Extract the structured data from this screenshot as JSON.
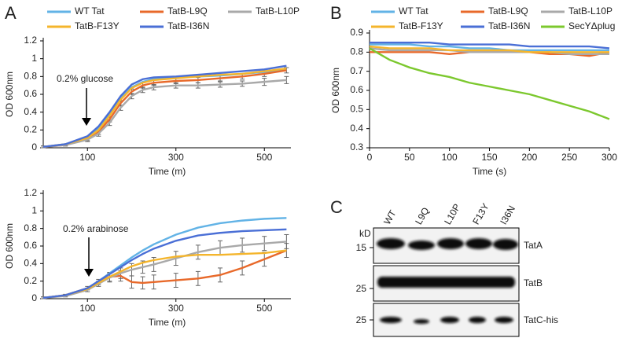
{
  "panel_labels": [
    "A",
    "B",
    "C"
  ],
  "chart_data": [
    {
      "type": "line",
      "ylabel": "OD 600nm",
      "xlabel": "Time (m)",
      "annotation": "0.2% glucose",
      "x": [
        0,
        50,
        100,
        125,
        150,
        175,
        200,
        225,
        250,
        300,
        350,
        400,
        450,
        500,
        550
      ],
      "xlim": [
        0,
        560
      ],
      "xticks": [
        100,
        300,
        500
      ],
      "ylim": [
        0,
        1.2
      ],
      "yticks": [
        0,
        0.2,
        0.4,
        0.6,
        0.8,
        1,
        1.2
      ],
      "series": [
        {
          "name": "WT Tat",
          "color": "#62b3e6",
          "values": [
            0.01,
            0.04,
            0.12,
            0.22,
            0.38,
            0.55,
            0.68,
            0.74,
            0.77,
            0.79,
            0.8,
            0.81,
            0.83,
            0.85,
            0.88
          ]
        },
        {
          "name": "TatB-L9Q",
          "color": "#e8692a",
          "values": [
            0.01,
            0.03,
            0.1,
            0.18,
            0.32,
            0.5,
            0.63,
            0.7,
            0.73,
            0.75,
            0.76,
            0.78,
            0.8,
            0.83,
            0.87
          ],
          "errors": [
            0.01,
            0.01,
            0.02,
            0.03,
            0.03,
            0.03,
            0.03,
            0.03,
            0.03,
            0.03,
            0.03,
            0.03,
            0.03,
            0.03,
            0.03
          ]
        },
        {
          "name": "TatB-L10P",
          "color": "#a9a9a9",
          "values": [
            0.01,
            0.03,
            0.09,
            0.16,
            0.28,
            0.45,
            0.58,
            0.65,
            0.68,
            0.7,
            0.7,
            0.71,
            0.72,
            0.74,
            0.76
          ],
          "errors": [
            0.01,
            0.01,
            0.02,
            0.03,
            0.03,
            0.03,
            0.03,
            0.03,
            0.03,
            0.03,
            0.03,
            0.03,
            0.03,
            0.04,
            0.04
          ]
        },
        {
          "name": "TatB-F13Y",
          "color": "#f4b52c",
          "values": [
            0.01,
            0.04,
            0.11,
            0.2,
            0.36,
            0.54,
            0.67,
            0.73,
            0.76,
            0.78,
            0.8,
            0.82,
            0.83,
            0.86,
            0.89
          ]
        },
        {
          "name": "TatB-I36N",
          "color": "#4a6fd6",
          "values": [
            0.01,
            0.04,
            0.13,
            0.24,
            0.4,
            0.58,
            0.71,
            0.77,
            0.79,
            0.8,
            0.82,
            0.84,
            0.86,
            0.88,
            0.92
          ]
        }
      ]
    },
    {
      "type": "line",
      "ylabel": "OD 600nm",
      "xlabel": "Time (m)",
      "annotation": "0.2% arabinose",
      "x": [
        0,
        50,
        100,
        125,
        150,
        175,
        200,
        225,
        250,
        300,
        350,
        400,
        450,
        500,
        550
      ],
      "xlim": [
        0,
        560
      ],
      "xticks": [
        100,
        300,
        500
      ],
      "ylim": [
        0,
        1.2
      ],
      "yticks": [
        0,
        0.2,
        0.4,
        0.6,
        0.8,
        1,
        1.2
      ],
      "series": [
        {
          "color": "#62b3e6",
          "values": [
            0.01,
            0.04,
            0.12,
            0.2,
            0.29,
            0.38,
            0.47,
            0.55,
            0.62,
            0.73,
            0.81,
            0.86,
            0.89,
            0.91,
            0.92
          ]
        },
        {
          "color": "#e8692a",
          "values": [
            0.01,
            0.04,
            0.12,
            0.19,
            0.25,
            0.26,
            0.19,
            0.18,
            0.19,
            0.21,
            0.23,
            0.27,
            0.35,
            0.45,
            0.55
          ],
          "errors": [
            0.01,
            0.01,
            0.02,
            0.03,
            0.05,
            0.06,
            0.07,
            0.07,
            0.08,
            0.08,
            0.08,
            0.08,
            0.08,
            0.08,
            0.08
          ]
        },
        {
          "color": "#a9a9a9",
          "values": [
            0.01,
            0.03,
            0.1,
            0.17,
            0.24,
            0.29,
            0.33,
            0.36,
            0.39,
            0.46,
            0.53,
            0.58,
            0.61,
            0.63,
            0.65
          ],
          "errors": [
            0.01,
            0.01,
            0.02,
            0.03,
            0.05,
            0.06,
            0.07,
            0.07,
            0.08,
            0.08,
            0.08,
            0.08,
            0.08,
            0.08,
            0.08
          ]
        },
        {
          "color": "#f4b52c",
          "values": [
            0.01,
            0.04,
            0.11,
            0.18,
            0.25,
            0.31,
            0.37,
            0.41,
            0.44,
            0.48,
            0.5,
            0.5,
            0.51,
            0.52,
            0.55
          ]
        },
        {
          "color": "#4a6fd6",
          "values": [
            0.01,
            0.04,
            0.12,
            0.2,
            0.28,
            0.36,
            0.44,
            0.51,
            0.57,
            0.66,
            0.72,
            0.75,
            0.77,
            0.78,
            0.79
          ]
        }
      ]
    },
    {
      "type": "line",
      "ylabel": "OD 600nm",
      "xlabel": "Time (s)",
      "x": [
        0,
        25,
        50,
        75,
        100,
        125,
        150,
        175,
        200,
        225,
        250,
        275,
        300
      ],
      "xlim": [
        0,
        300
      ],
      "xticks": [
        0,
        50,
        100,
        150,
        200,
        250,
        300
      ],
      "ylim": [
        0.3,
        0.9
      ],
      "yticks": [
        0.3,
        0.4,
        0.5,
        0.6,
        0.7,
        0.8,
        0.9
      ],
      "series": [
        {
          "name": "WT Tat",
          "color": "#62b3e6",
          "values": [
            0.84,
            0.84,
            0.84,
            0.83,
            0.83,
            0.82,
            0.82,
            0.81,
            0.81,
            0.81,
            0.81,
            0.81,
            0.81
          ]
        },
        {
          "name": "TatB-L9Q",
          "color": "#e8692a",
          "values": [
            0.8,
            0.8,
            0.8,
            0.8,
            0.79,
            0.8,
            0.8,
            0.8,
            0.8,
            0.79,
            0.79,
            0.78,
            0.8
          ]
        },
        {
          "name": "TatB-L10P",
          "color": "#a9a9a9",
          "values": [
            0.82,
            0.81,
            0.81,
            0.81,
            0.81,
            0.8,
            0.8,
            0.8,
            0.8,
            0.8,
            0.79,
            0.79,
            0.79
          ]
        },
        {
          "name": "TatB-F13Y",
          "color": "#f4b52c",
          "values": [
            0.83,
            0.82,
            0.82,
            0.82,
            0.81,
            0.81,
            0.81,
            0.81,
            0.8,
            0.8,
            0.8,
            0.8,
            0.8
          ]
        },
        {
          "name": "TatB-I36N",
          "color": "#4a6fd6",
          "values": [
            0.85,
            0.85,
            0.85,
            0.85,
            0.84,
            0.84,
            0.84,
            0.84,
            0.83,
            0.83,
            0.83,
            0.83,
            0.82
          ]
        },
        {
          "name": "SecYΔplug",
          "color": "#7cc82e",
          "values": [
            0.82,
            0.76,
            0.72,
            0.69,
            0.67,
            0.64,
            0.62,
            0.6,
            0.58,
            0.55,
            0.52,
            0.49,
            0.45
          ]
        }
      ]
    }
  ],
  "blot": {
    "kd_label": "kD",
    "lanes": [
      "WT",
      "L9Q",
      "L10P",
      "F13Y",
      "I36N"
    ],
    "rows": [
      {
        "marker": "15",
        "label": "TatA"
      },
      {
        "marker": "25",
        "label": "TatB"
      },
      {
        "marker": "25",
        "label": "TatC-his"
      }
    ]
  }
}
